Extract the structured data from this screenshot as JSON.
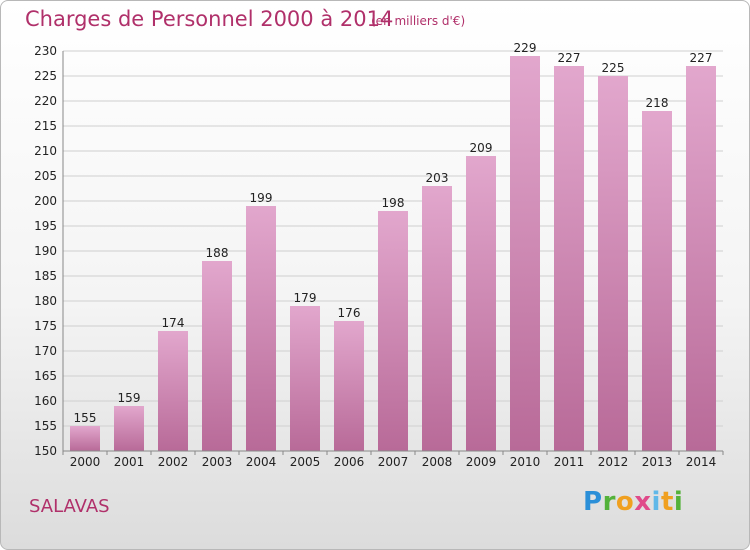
{
  "chart_data": {
    "type": "bar",
    "title": "Charges de Personnel 2000 à 2014",
    "subtitle": "(en milliers d'€)",
    "categories": [
      "2000",
      "2001",
      "2002",
      "2003",
      "2004",
      "2005",
      "2006",
      "2007",
      "2008",
      "2009",
      "2010",
      "2011",
      "2012",
      "2013",
      "2014"
    ],
    "values": [
      155,
      159,
      174,
      188,
      199,
      179,
      176,
      198,
      203,
      209,
      229,
      227,
      225,
      218,
      227
    ],
    "ylim": [
      150,
      230
    ],
    "yticks": [
      150,
      155,
      160,
      165,
      170,
      175,
      180,
      185,
      190,
      195,
      200,
      205,
      210,
      215,
      220,
      225,
      230
    ],
    "grid": true,
    "bar_color_top": "#e2a7cd",
    "bar_color_bottom": "#b86a98"
  },
  "commune": "SALAVAS",
  "logo": {
    "p": "P",
    "r": "r",
    "o": "o",
    "x": "x",
    "i1": "i",
    "t": "t",
    "i2": "i"
  }
}
